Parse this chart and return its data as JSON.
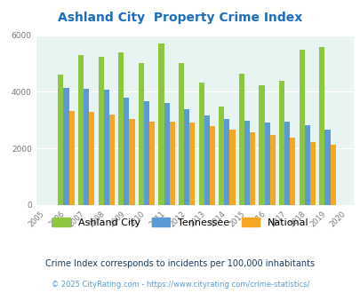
{
  "title": "Ashland City  Property Crime Index",
  "years": [
    2005,
    2006,
    2007,
    2008,
    2009,
    2010,
    2011,
    2012,
    2013,
    2014,
    2015,
    2016,
    2017,
    2018,
    2019,
    2020
  ],
  "ashland_city": [
    null,
    4620,
    5310,
    5220,
    5400,
    5020,
    5700,
    5030,
    4320,
    3470,
    4630,
    4240,
    4390,
    5500,
    5580,
    null
  ],
  "tennessee": [
    null,
    4130,
    4100,
    4070,
    3800,
    3680,
    3620,
    3380,
    3160,
    3040,
    2990,
    2900,
    2940,
    2820,
    2680,
    null
  ],
  "national": [
    null,
    3310,
    3280,
    3190,
    3040,
    2950,
    2940,
    2900,
    2790,
    2660,
    2560,
    2490,
    2380,
    2220,
    2130,
    null
  ],
  "color_ashland": "#8dc63f",
  "color_tennessee": "#5b9bd5",
  "color_national": "#f5a623",
  "bg_color": "#e8f4f2",
  "ylim": [
    0,
    6000
  ],
  "yticks": [
    0,
    2000,
    4000,
    6000
  ],
  "subtitle": "Crime Index corresponds to incidents per 100,000 inhabitants",
  "footer": "© 2025 CityRating.com - https://www.cityrating.com/crime-statistics/",
  "title_color": "#1a6dbf",
  "subtitle_color": "#1a3a5c",
  "footer_color": "#5b9bd5",
  "legend_labels": [
    "Ashland City",
    "Tennessee",
    "National"
  ]
}
